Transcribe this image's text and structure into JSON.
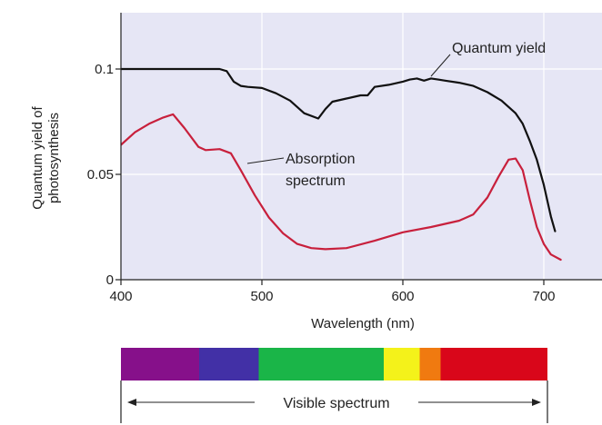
{
  "chart_data": {
    "type": "line",
    "title": "",
    "xlabel": "Wavelength (nm)",
    "ylabel": "Quantum yield of photosynthesis",
    "xlim": [
      400,
      720
    ],
    "ylim": [
      0,
      0.125
    ],
    "x_ticks": [
      400,
      500,
      600,
      700
    ],
    "y_ticks": [
      0,
      0.05,
      0.1
    ],
    "y_tick_labels": [
      "0",
      "0.05",
      "0.1"
    ],
    "grid": true,
    "background_color": "#e6e6f5",
    "series": [
      {
        "name": "Quantum yield",
        "color": "#111111",
        "x": [
          400,
          440,
          470,
          475,
          480,
          485,
          490,
          500,
          510,
          520,
          530,
          540,
          545,
          550,
          560,
          570,
          575,
          580,
          590,
          600,
          605,
          610,
          615,
          620,
          625,
          630,
          640,
          650,
          660,
          670,
          680,
          685,
          690,
          695,
          700,
          705,
          708
        ],
        "y": [
          0.1,
          0.1,
          0.1,
          0.099,
          0.094,
          0.092,
          0.0915,
          0.091,
          0.0885,
          0.085,
          0.079,
          0.0765,
          0.081,
          0.0845,
          0.086,
          0.0875,
          0.0875,
          0.0915,
          0.0925,
          0.094,
          0.095,
          0.0955,
          0.0945,
          0.0955,
          0.095,
          0.0945,
          0.0935,
          0.092,
          0.089,
          0.085,
          0.079,
          0.074,
          0.066,
          0.057,
          0.045,
          0.03,
          0.023
        ]
      },
      {
        "name": "Absorption spectrum",
        "color": "#c8203c",
        "x": [
          400,
          410,
          420,
          430,
          437,
          445,
          455,
          460,
          470,
          478,
          485,
          495,
          505,
          515,
          525,
          535,
          545,
          560,
          580,
          600,
          620,
          640,
          650,
          660,
          668,
          675,
          680,
          685,
          690,
          695,
          700,
          705,
          712
        ],
        "y": [
          0.064,
          0.07,
          0.074,
          0.077,
          0.0785,
          0.072,
          0.063,
          0.0615,
          0.062,
          0.06,
          0.052,
          0.04,
          0.0295,
          0.022,
          0.017,
          0.015,
          0.0145,
          0.015,
          0.0185,
          0.0225,
          0.025,
          0.028,
          0.031,
          0.039,
          0.049,
          0.057,
          0.0575,
          0.052,
          0.038,
          0.025,
          0.017,
          0.012,
          0.0095
        ]
      }
    ],
    "annotations": [
      {
        "text": "Quantum yield",
        "target": "Quantum yield"
      },
      {
        "text": "Absorption\nspectrum",
        "target": "Absorption spectrum"
      }
    ]
  },
  "annotations": {
    "quantum_yield_label": "Quantum yield",
    "absorption_line1": "Absorption",
    "absorption_line2": "spectrum"
  },
  "y_axis_title": {
    "line1": "Quantum yield of",
    "line2": "photosynthesis"
  },
  "visible_spectrum": {
    "label": "Visible spectrum",
    "x_range_nm": [
      400,
      700
    ],
    "bands": [
      {
        "from": 400,
        "to": 455,
        "color": "#86108a"
      },
      {
        "from": 455,
        "to": 497,
        "color": "#4230a6"
      },
      {
        "from": 497,
        "to": 585,
        "color": "#1ab548"
      },
      {
        "from": 585,
        "to": 610,
        "color": "#f4f21a"
      },
      {
        "from": 610,
        "to": 625,
        "color": "#f07a10"
      },
      {
        "from": 625,
        "to": 700,
        "color": "#d9061a"
      }
    ]
  }
}
